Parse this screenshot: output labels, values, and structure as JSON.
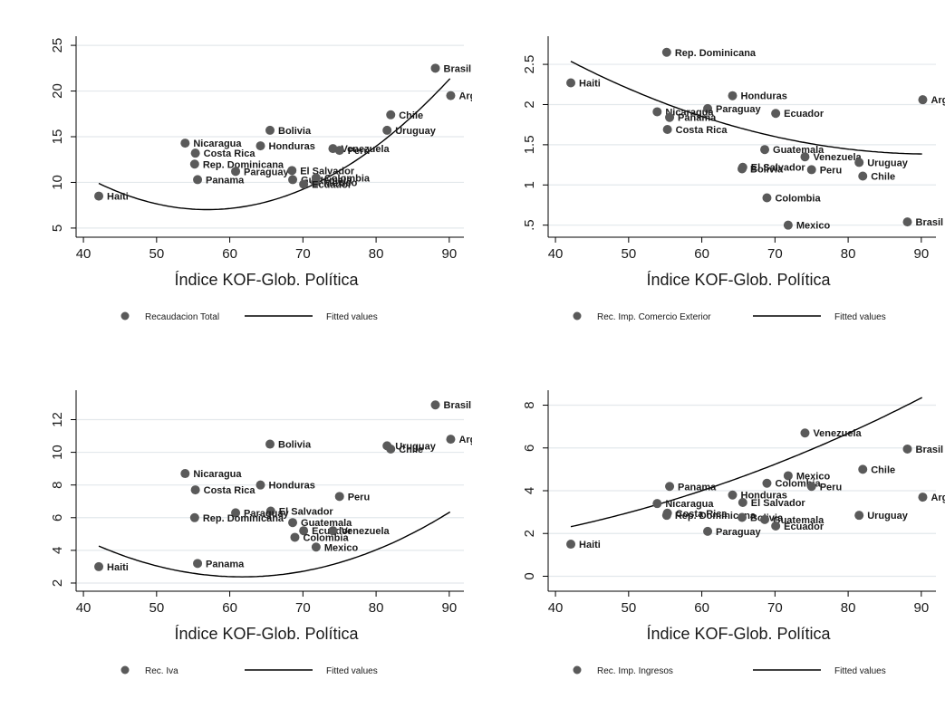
{
  "chart_data": [
    {
      "type": "scatter",
      "xlabel": "Índice KOF-Glob. Política",
      "ylabel": "",
      "xlim": [
        39,
        92
      ],
      "ylim": [
        4,
        26
      ],
      "x_ticks": [
        40,
        50,
        60,
        70,
        80,
        90
      ],
      "y_ticks": [
        5,
        10,
        15,
        20,
        25
      ],
      "y_tick_labels": [
        "5",
        "10",
        "15",
        "20",
        "25"
      ],
      "legend": [
        "Recaudacion Total",
        "Fitted values"
      ],
      "legend_position": "bottom",
      "grid": "horizontal",
      "points": [
        {
          "label": "Haiti",
          "x": 42.1,
          "y": 8.5
        },
        {
          "label": "Nicaragua",
          "x": 53.9,
          "y": 14.3
        },
        {
          "label": "Costa Rica",
          "x": 55.3,
          "y": 13.2
        },
        {
          "label": "Rep. Dominicana",
          "x": 55.2,
          "y": 12.0
        },
        {
          "label": "Panama",
          "x": 55.6,
          "y": 10.3
        },
        {
          "label": "Paraguay",
          "x": 60.8,
          "y": 11.2
        },
        {
          "label": "Honduras",
          "x": 64.2,
          "y": 14.0
        },
        {
          "label": "Bolivia",
          "x": 65.5,
          "y": 15.7
        },
        {
          "label": "El Salvador",
          "x": 68.5,
          "y": 11.3
        },
        {
          "label": "Guatemala",
          "x": 68.6,
          "y": 10.3
        },
        {
          "label": "Colombia",
          "x": 71.8,
          "y": 10.5
        },
        {
          "label": "Mexico",
          "x": 71.7,
          "y": 10.0
        },
        {
          "label": "Ecuador",
          "x": 70.1,
          "y": 9.8
        },
        {
          "label": "Venezuela",
          "x": 74.1,
          "y": 13.7
        },
        {
          "label": "Peru",
          "x": 75.0,
          "y": 13.5
        },
        {
          "label": "Uruguay",
          "x": 81.5,
          "y": 15.7
        },
        {
          "label": "Chile",
          "x": 82.0,
          "y": 17.4
        },
        {
          "label": "Brasil",
          "x": 88.1,
          "y": 22.5
        },
        {
          "label": "Argentina",
          "x": 90.2,
          "y": 19.5,
          "shown": "Arge"
        }
      ],
      "fitted": {
        "a": 49.3,
        "b": -1.485,
        "c": 0.01304
      }
    },
    {
      "type": "scatter",
      "xlabel": "Índice KOF-Glob. Política",
      "ylabel": "",
      "xlim": [
        39,
        92
      ],
      "ylim": [
        0.35,
        2.85
      ],
      "x_ticks": [
        40,
        50,
        60,
        70,
        80,
        90
      ],
      "y_ticks": [
        0.5,
        1,
        1.5,
        2,
        2.5
      ],
      "y_tick_labels": [
        ".5",
        "1",
        "1.5",
        "2",
        "2.5"
      ],
      "legend": [
        "Rec. Imp. Comercio Exterior",
        "Fitted values"
      ],
      "legend_position": "bottom",
      "grid": "horizontal",
      "points": [
        {
          "label": "Rep. Dominicana",
          "x": 55.2,
          "y": 2.65
        },
        {
          "label": "Haiti",
          "x": 42.1,
          "y": 2.27
        },
        {
          "label": "Honduras",
          "x": 64.2,
          "y": 2.11
        },
        {
          "label": "Argentina",
          "x": 90.2,
          "y": 2.06,
          "shown": "Argent"
        },
        {
          "label": "Paraguay",
          "x": 60.8,
          "y": 1.95
        },
        {
          "label": "Nicaragua",
          "x": 53.9,
          "y": 1.91
        },
        {
          "label": "Panama",
          "x": 55.6,
          "y": 1.84
        },
        {
          "label": "Ecuador",
          "x": 70.1,
          "y": 1.89
        },
        {
          "label": "Costa Rica",
          "x": 55.3,
          "y": 1.69
        },
        {
          "label": "Guatemala",
          "x": 68.6,
          "y": 1.44
        },
        {
          "label": "Venezuela",
          "x": 74.1,
          "y": 1.35
        },
        {
          "label": "Uruguay",
          "x": 81.5,
          "y": 1.28
        },
        {
          "label": "El Salvador",
          "x": 65.6,
          "y": 1.22
        },
        {
          "label": "Bolivia",
          "x": 65.5,
          "y": 1.2
        },
        {
          "label": "Peru",
          "x": 75.0,
          "y": 1.19
        },
        {
          "label": "Chile",
          "x": 82.0,
          "y": 1.11
        },
        {
          "label": "Colombia",
          "x": 68.9,
          "y": 0.84
        },
        {
          "label": "Mexico",
          "x": 71.8,
          "y": 0.5
        },
        {
          "label": "Brasil",
          "x": 88.1,
          "y": 0.54
        }
      ],
      "fitted": {
        "a": 5.35,
        "b": -0.0868,
        "c": 0.000475
      }
    },
    {
      "type": "scatter",
      "xlabel": "Índice KOF-Glob. Política",
      "ylabel": "",
      "xlim": [
        39,
        92
      ],
      "ylim": [
        1.5,
        13.8
      ],
      "x_ticks": [
        40,
        50,
        60,
        70,
        80,
        90
      ],
      "y_ticks": [
        2,
        4,
        6,
        8,
        10,
        12
      ],
      "y_tick_labels": [
        "2",
        "4",
        "6",
        "8",
        "10",
        "12"
      ],
      "legend": [
        "Rec. Iva",
        "Fitted values"
      ],
      "legend_position": "bottom",
      "grid": "horizontal",
      "points": [
        {
          "label": "Brasil",
          "x": 88.1,
          "y": 12.9
        },
        {
          "label": "Argentina",
          "x": 90.2,
          "y": 10.8,
          "shown": "Arge"
        },
        {
          "label": "Bolivia",
          "x": 65.5,
          "y": 10.5
        },
        {
          "label": "Uruguay",
          "x": 81.5,
          "y": 10.4
        },
        {
          "label": "Chile",
          "x": 82.0,
          "y": 10.2
        },
        {
          "label": "Nicaragua",
          "x": 53.9,
          "y": 8.7
        },
        {
          "label": "Honduras",
          "x": 64.2,
          "y": 8.0
        },
        {
          "label": "Costa Rica",
          "x": 55.3,
          "y": 7.7
        },
        {
          "label": "Peru",
          "x": 75.0,
          "y": 7.3
        },
        {
          "label": "El Salvador",
          "x": 65.6,
          "y": 6.4
        },
        {
          "label": "Paraguay",
          "x": 60.8,
          "y": 6.3
        },
        {
          "label": "Rep. Dominicana",
          "x": 55.2,
          "y": 6.0
        },
        {
          "label": "Guatemala",
          "x": 68.6,
          "y": 5.7
        },
        {
          "label": "Ecuador",
          "x": 70.1,
          "y": 5.2
        },
        {
          "label": "Venezuela",
          "x": 74.1,
          "y": 5.2
        },
        {
          "label": "Colombia",
          "x": 68.9,
          "y": 4.8
        },
        {
          "label": "Mexico",
          "x": 71.8,
          "y": 4.2
        },
        {
          "label": "Panama",
          "x": 55.6,
          "y": 3.2
        },
        {
          "label": "Haiti",
          "x": 42.1,
          "y": 3.0
        }
      ],
      "fitted": {
        "a": 21.1,
        "b": -0.607,
        "c": 0.00492
      }
    },
    {
      "type": "scatter",
      "xlabel": "Índice KOF-Glob. Política",
      "ylabel": "",
      "xlim": [
        39,
        92
      ],
      "ylim": [
        -0.7,
        8.7
      ],
      "x_ticks": [
        40,
        50,
        60,
        70,
        80,
        90
      ],
      "y_ticks": [
        0,
        2,
        4,
        6,
        8
      ],
      "y_tick_labels": [
        "0",
        "2",
        "4",
        "6",
        "8"
      ],
      "legend": [
        "Rec. Imp. Ingresos",
        "Fitted values"
      ],
      "legend_position": "bottom",
      "grid": "horizontal",
      "points": [
        {
          "label": "Venezuela",
          "x": 74.1,
          "y": 6.7
        },
        {
          "label": "Brasil",
          "x": 88.1,
          "y": 5.95
        },
        {
          "label": "Chile",
          "x": 82.0,
          "y": 5.0
        },
        {
          "label": "Mexico",
          "x": 71.8,
          "y": 4.7
        },
        {
          "label": "Colombia",
          "x": 68.9,
          "y": 4.35
        },
        {
          "label": "Panama",
          "x": 55.6,
          "y": 4.2
        },
        {
          "label": "Peru",
          "x": 75.0,
          "y": 4.2
        },
        {
          "label": "Honduras",
          "x": 64.2,
          "y": 3.8
        },
        {
          "label": "Argentina",
          "x": 90.2,
          "y": 3.7,
          "shown": "Argent"
        },
        {
          "label": "El Salvador",
          "x": 65.6,
          "y": 3.45
        },
        {
          "label": "Nicaragua",
          "x": 53.9,
          "y": 3.4
        },
        {
          "label": "Costa Rica",
          "x": 55.3,
          "y": 2.95
        },
        {
          "label": "Rep. Dominicana",
          "x": 55.2,
          "y": 2.85
        },
        {
          "label": "Uruguay",
          "x": 81.5,
          "y": 2.85
        },
        {
          "label": "Bolivia",
          "x": 65.5,
          "y": 2.75
        },
        {
          "label": "Guatemala",
          "x": 68.6,
          "y": 2.65
        },
        {
          "label": "Ecuador",
          "x": 70.1,
          "y": 2.35
        },
        {
          "label": "Paraguay",
          "x": 60.8,
          "y": 2.1
        },
        {
          "label": "Haiti",
          "x": 42.1,
          "y": 1.5
        }
      ],
      "fitted": {
        "a": 1.03,
        "b": -0.0139,
        "c": 0.001057
      }
    }
  ]
}
